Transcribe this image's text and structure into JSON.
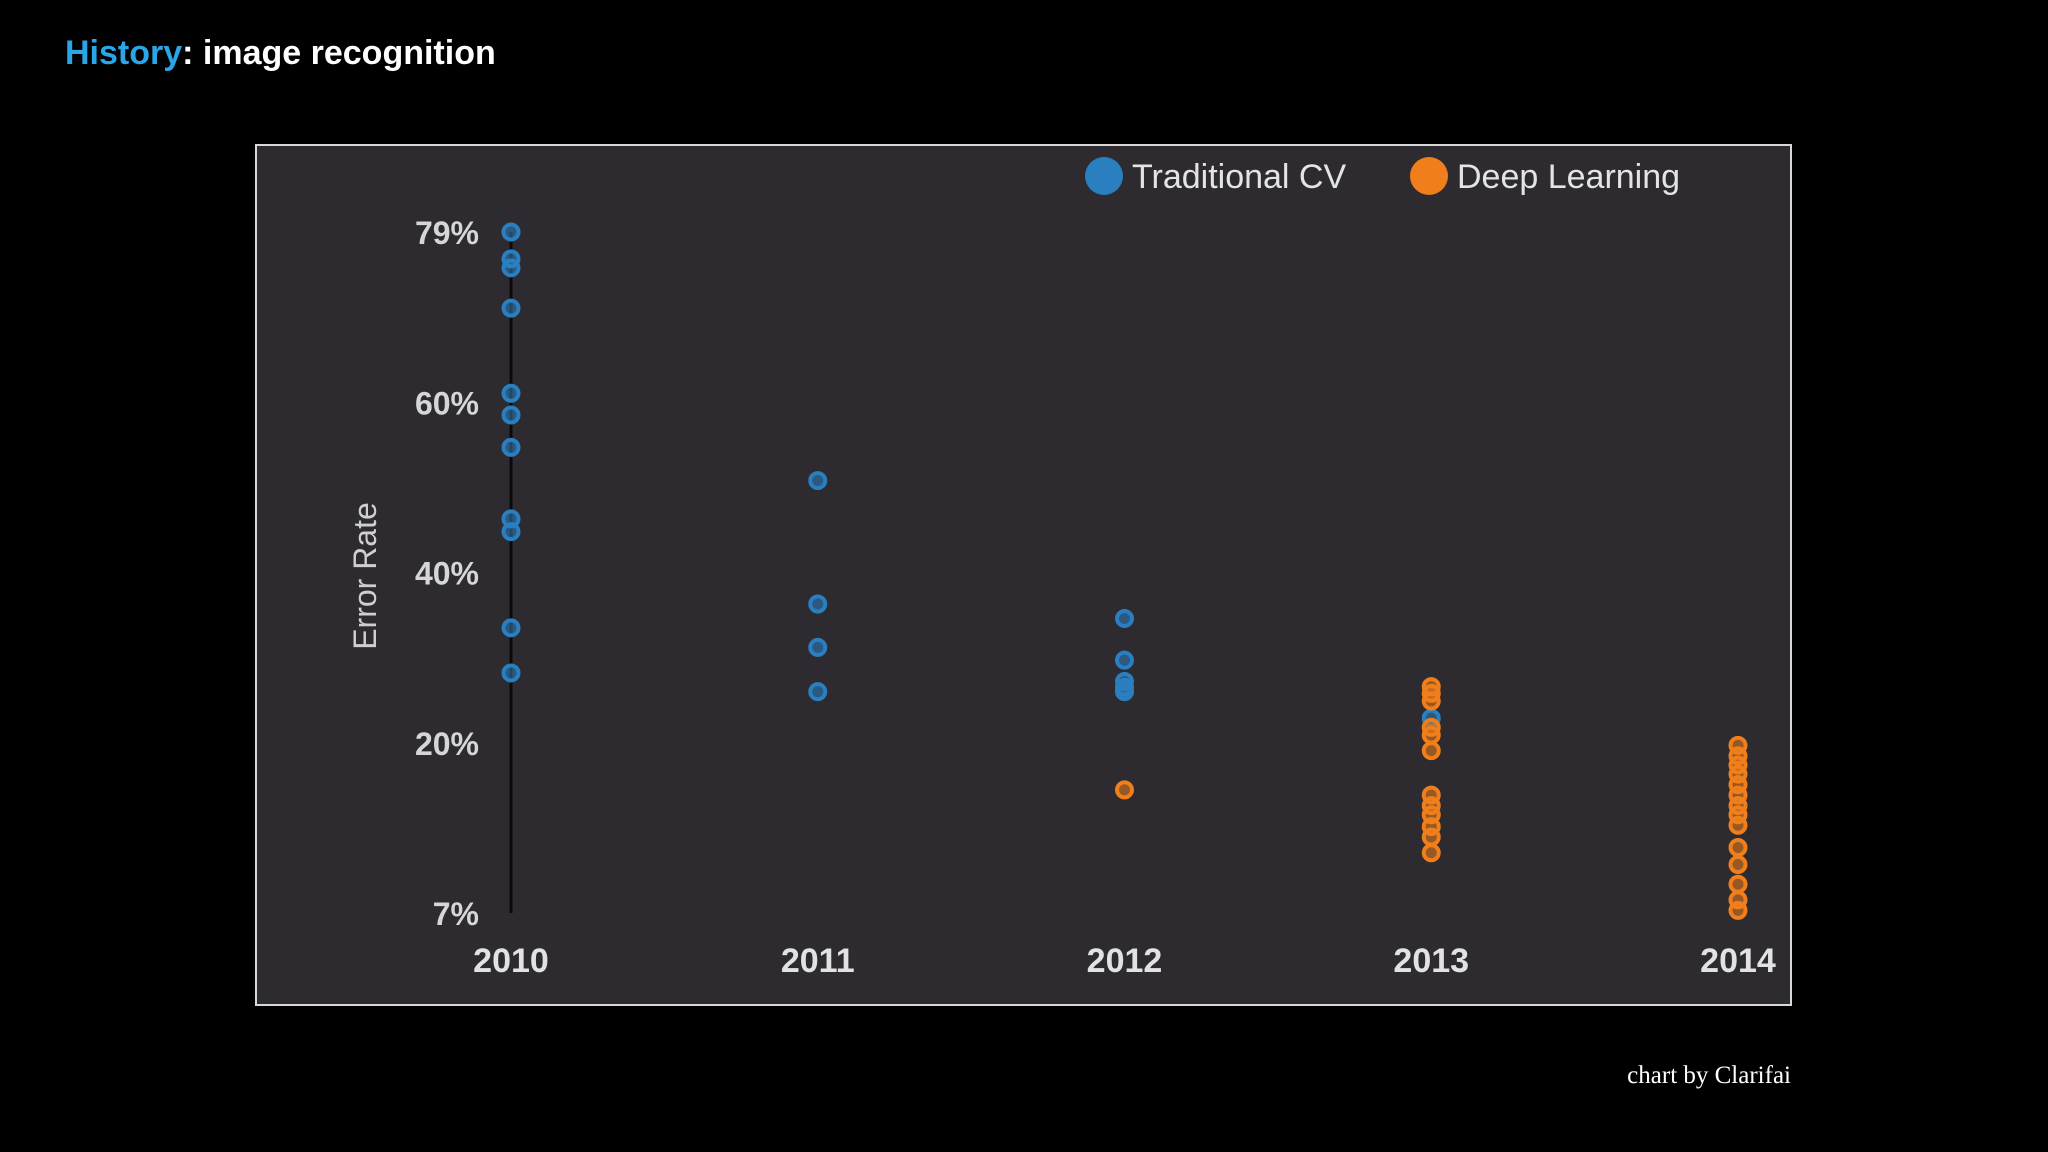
{
  "slide": {
    "title_accent": "History",
    "title_rest": ": image recognition",
    "credit": "chart by Clarifai"
  },
  "chart_data": {
    "type": "scatter",
    "ylabel": "Error Rate",
    "xlabel": "",
    "y_ticks": [
      "79%",
      "60%",
      "40%",
      "20%",
      "7%"
    ],
    "y_tick_values": [
      79,
      60,
      40,
      20,
      7
    ],
    "ylim": [
      7,
      79
    ],
    "categories": [
      "2010",
      "2011",
      "2012",
      "2013",
      "2014"
    ],
    "grid": false,
    "legend_position": "top-right",
    "series": [
      {
        "name": "Traditional CV",
        "color": "#2a7fc1",
        "points": [
          {
            "x": "2010",
            "y": 79
          },
          {
            "x": "2010",
            "y": 76
          },
          {
            "x": "2010",
            "y": 75
          },
          {
            "x": "2010",
            "y": 70.5
          },
          {
            "x": "2010",
            "y": 61
          },
          {
            "x": "2010",
            "y": 58.5
          },
          {
            "x": "2010",
            "y": 54.7
          },
          {
            "x": "2010",
            "y": 46.3
          },
          {
            "x": "2010",
            "y": 44.8
          },
          {
            "x": "2010",
            "y": 33.5
          },
          {
            "x": "2010",
            "y": 28.2
          },
          {
            "x": "2011",
            "y": 50.8
          },
          {
            "x": "2011",
            "y": 36.3
          },
          {
            "x": "2011",
            "y": 31.2
          },
          {
            "x": "2011",
            "y": 26
          },
          {
            "x": "2012",
            "y": 34.6
          },
          {
            "x": "2012",
            "y": 29.7
          },
          {
            "x": "2012",
            "y": 27.2
          },
          {
            "x": "2012",
            "y": 26.5
          },
          {
            "x": "2012",
            "y": 26
          },
          {
            "x": "2013",
            "y": 22.9
          }
        ]
      },
      {
        "name": "Deep Learning",
        "color": "#f07e1a",
        "points": [
          {
            "x": "2012",
            "y": 16.4
          },
          {
            "x": "2013",
            "y": 26.6
          },
          {
            "x": "2013",
            "y": 25.8
          },
          {
            "x": "2013",
            "y": 24.9
          },
          {
            "x": "2013",
            "y": 21.8
          },
          {
            "x": "2013",
            "y": 20.9
          },
          {
            "x": "2013",
            "y": 19.4
          },
          {
            "x": "2013",
            "y": 16
          },
          {
            "x": "2013",
            "y": 15.2
          },
          {
            "x": "2013",
            "y": 14.5
          },
          {
            "x": "2013",
            "y": 13.6
          },
          {
            "x": "2013",
            "y": 12.8
          },
          {
            "x": "2013",
            "y": 11.6
          },
          {
            "x": "2014",
            "y": 19.8
          },
          {
            "x": "2014",
            "y": 19
          },
          {
            "x": "2014",
            "y": 18.3
          },
          {
            "x": "2014",
            "y": 17.6
          },
          {
            "x": "2014",
            "y": 16.8
          },
          {
            "x": "2014",
            "y": 16
          },
          {
            "x": "2014",
            "y": 15.2
          },
          {
            "x": "2014",
            "y": 14.5
          },
          {
            "x": "2014",
            "y": 13.7
          },
          {
            "x": "2014",
            "y": 12
          },
          {
            "x": "2014",
            "y": 10.7
          },
          {
            "x": "2014",
            "y": 9.2
          },
          {
            "x": "2014",
            "y": 8
          },
          {
            "x": "2014",
            "y": 7.2
          }
        ]
      }
    ]
  }
}
